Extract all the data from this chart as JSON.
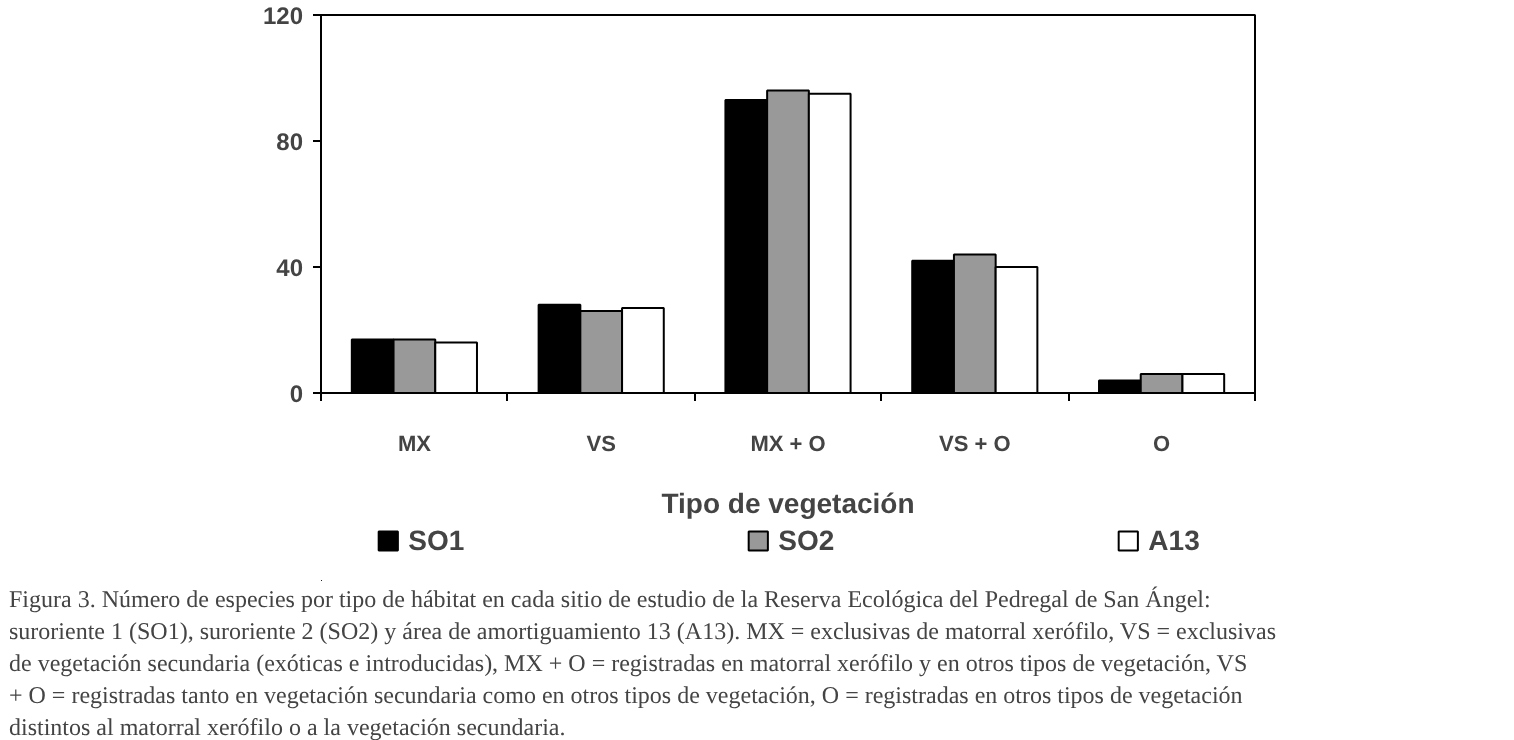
{
  "chart_data": {
    "type": "bar",
    "xlabel": "Tipo de vegetación",
    "categories": [
      "MX",
      "VS",
      "MX + O",
      "VS + O",
      "O"
    ],
    "series": [
      {
        "name": "SO1",
        "color": "#000000",
        "values": [
          17,
          28,
          93,
          42,
          4
        ]
      },
      {
        "name": "SO2",
        "color": "#999999",
        "values": [
          17,
          26,
          96,
          44,
          6
        ]
      },
      {
        "name": "A13",
        "color": "#ffffff",
        "values": [
          16,
          27,
          95,
          40,
          6
        ]
      }
    ],
    "ylim": [
      0,
      120
    ],
    "yticks": [
      0,
      40,
      80,
      120
    ],
    "grid": false,
    "legend": "bottom",
    "annotations": [
      "Figura 3. Número de especies por tipo de hábitat en cada sitio de estudio de la Reserva Ecológica del Pedregal de San Ángel: suroriente 1 (SO1), suroriente 2 (SO2) y área de amortiguamiento 13 (A13). MX = exclusivas de matorral xerófilo, VS = exclusivas de vegetación secundaria (exóticas e introducidas), MX + O = registradas en matorral xerófilo y en otros tipos de vegetación, VS + O = registradas tanto en vegetación secundaria como en otros tipos de vegetación, O = registradas en otros tipos de vegetación distintos al matorral xerófilo o a la vegetación secundaria."
    ]
  }
}
